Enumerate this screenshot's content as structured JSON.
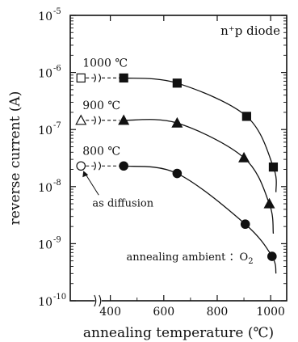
{
  "chart_data": {
    "type": "scatter",
    "title": "n⁺p diode",
    "xlabel": "annealing temperature (℃)",
    "ylabel": "reverse current (A)",
    "xlim": [
      250,
      1060
    ],
    "ylim": [
      1e-10,
      1e-05
    ],
    "y_scale": "log",
    "x_axis_break": "between as-diffusion point and 400",
    "x_tick_labels": [
      "400",
      "600",
      "800",
      "1000"
    ],
    "x_ticks": [
      400,
      600,
      800,
      1000
    ],
    "y_tick_labels": [
      {
        "base": "10",
        "exp": "-10",
        "value": 1e-10
      },
      {
        "base": "10",
        "exp": "-9",
        "value": 1e-09
      },
      {
        "base": "10",
        "exp": "-8",
        "value": 1e-08
      },
      {
        "base": "10",
        "exp": "-7",
        "value": 1e-07
      },
      {
        "base": "10",
        "exp": "-6",
        "value": 1e-06
      },
      {
        "base": "10",
        "exp": "-5",
        "value": 1e-05
      }
    ],
    "grid": false,
    "as_diffusion_x": 290,
    "series": [
      {
        "name": "1000 ℃",
        "marker": "square",
        "as_diffusion_y": 8e-07,
        "x": [
          450,
          650,
          910,
          1010
        ],
        "y": [
          8e-07,
          6.5e-07,
          1.7e-07,
          2.2e-08
        ],
        "curve_end": [
          1020,
          8e-09
        ]
      },
      {
        "name": "900 ℃",
        "marker": "triangle",
        "as_diffusion_y": 1.45e-07,
        "x": [
          450,
          650,
          900,
          995
        ],
        "y": [
          1.45e-07,
          1.3e-07,
          3.2e-08,
          5e-09
        ],
        "curve_end": [
          1010,
          1.5e-09
        ]
      },
      {
        "name": "800 ℃",
        "marker": "circle",
        "as_diffusion_y": 2.3e-08,
        "x": [
          450,
          650,
          905,
          1005
        ],
        "y": [
          2.3e-08,
          1.7e-08,
          2.2e-09,
          6e-10
        ],
        "curve_end": [
          1020,
          3e-10
        ]
      }
    ],
    "annotations": {
      "as_diffusion": "as diffusion",
      "ambient_label": "annealing ambient ：O",
      "ambient_sub": "2"
    }
  }
}
